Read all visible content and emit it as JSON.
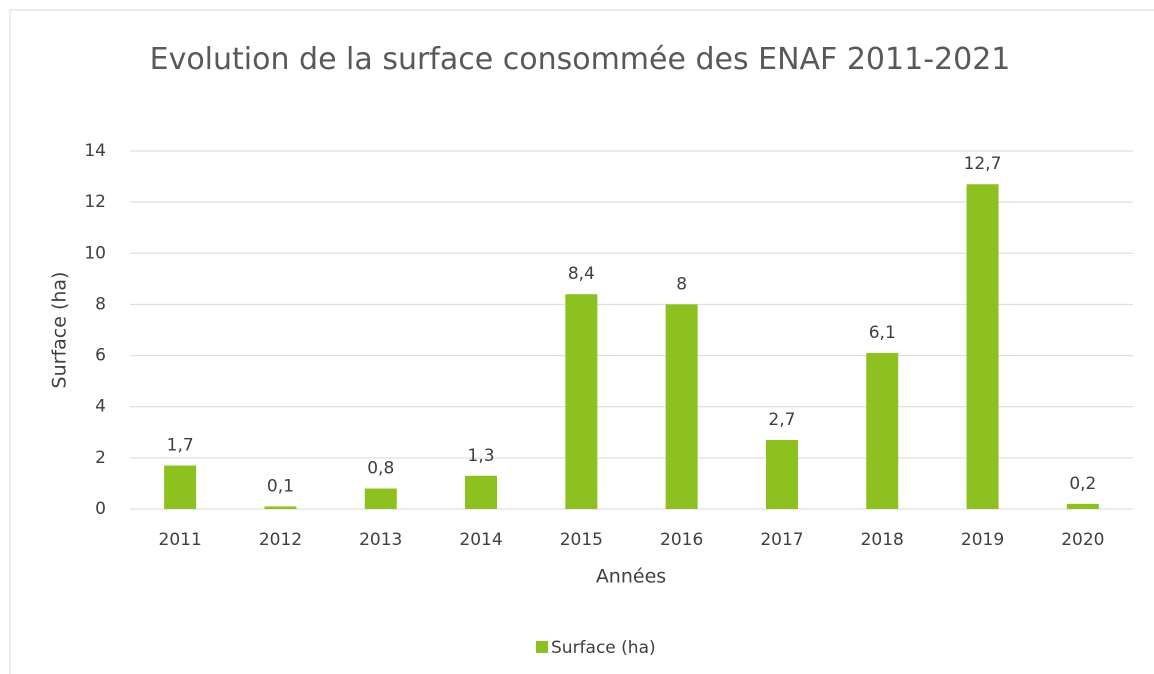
{
  "chart_data": {
    "type": "bar",
    "title": "Evolution de la surface consommée des ENAF 2011-2021",
    "x_label": "Années",
    "y_label": "Surface (ha)",
    "categories": [
      "2011",
      "2012",
      "2013",
      "2014",
      "2015",
      "2016",
      "2017",
      "2018",
      "2019",
      "2020"
    ],
    "series": [
      {
        "name": "Surface (ha)",
        "color": "#8cc11f",
        "values": [
          1.7,
          0.1,
          0.8,
          1.3,
          8.4,
          8,
          2.7,
          6.1,
          12.7,
          0.2
        ],
        "value_labels": [
          "1,7",
          "0,1",
          "0,8",
          "1,3",
          "8,4",
          "8",
          "2,7",
          "6,1",
          "12,7",
          "0,2"
        ]
      }
    ],
    "ylim": [
      0,
      14
    ],
    "yticks": [
      0,
      2,
      4,
      6,
      8,
      10,
      12,
      14
    ],
    "grid": true,
    "legend": "bottom"
  }
}
